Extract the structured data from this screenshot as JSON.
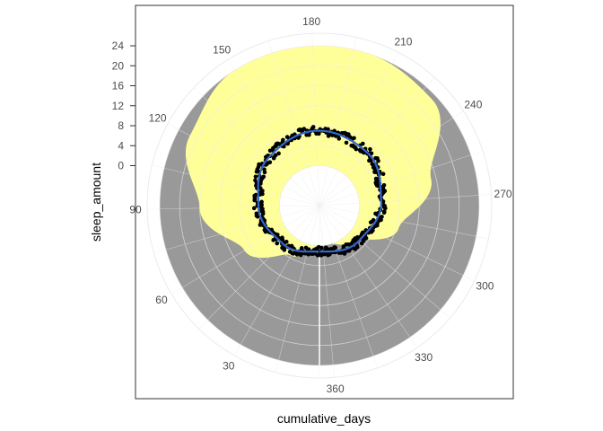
{
  "chart_data": {
    "type": "scatter",
    "coord": "polar",
    "xlabel": "cumulative_days",
    "ylabel": "sleep_amount",
    "theta_range": [
      0,
      365
    ],
    "theta_ticks": [
      30,
      60,
      90,
      120,
      150,
      180,
      210,
      240,
      270,
      300,
      330,
      360
    ],
    "r_range": [
      -8,
      24
    ],
    "r_ticks": [
      0,
      4,
      8,
      12,
      16,
      20,
      24
    ],
    "grid": true,
    "colors": {
      "daylight_fill": "#ffff99",
      "night_fill": "#999999",
      "points": "#000000",
      "smooth_line": "#3366cc",
      "grid": "#ebebeb",
      "panel_border": "#333333"
    },
    "daylight_hours_profile": {
      "days": [
        1,
        30,
        60,
        90,
        120,
        150,
        172,
        200,
        230,
        260,
        290,
        320,
        350,
        365
      ],
      "sleep_amount": [
        0,
        3.5,
        9.5,
        16,
        21.5,
        24,
        24,
        24,
        23,
        15,
        8.5,
        2,
        0,
        0
      ]
    },
    "night_band_outer": 24,
    "smooth_fit": {
      "days": [
        1,
        45,
        90,
        135,
        180,
        225,
        270,
        315,
        365
      ],
      "sleep_amount": [
        1.2,
        2.6,
        4.2,
        6,
        7,
        6.3,
        4.4,
        2.6,
        1.2
      ]
    },
    "points_summary": {
      "n_days": 365,
      "noise_range": 0.9
    }
  }
}
